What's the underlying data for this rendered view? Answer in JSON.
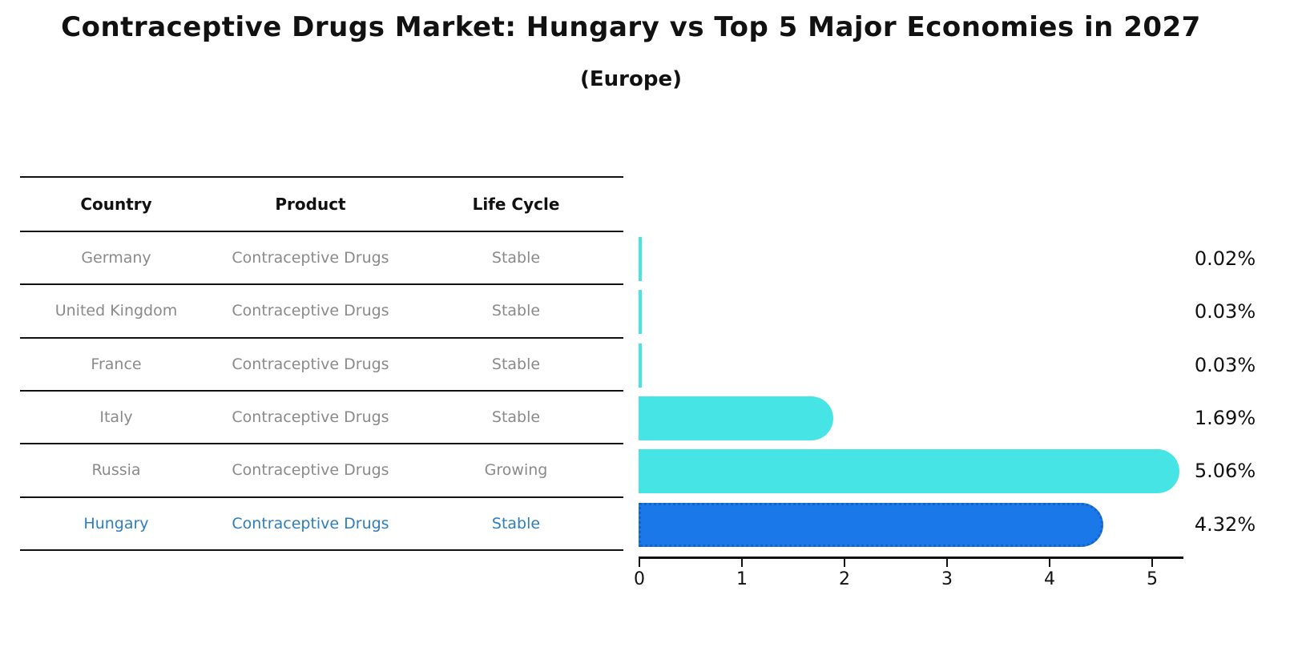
{
  "header": {
    "title": "Contraceptive Drugs Market: Hungary vs Top 5 Major Economies in 2027",
    "subtitle": "(Europe)"
  },
  "table": {
    "headers": [
      "Country",
      "Product",
      "Life Cycle"
    ],
    "rows": [
      {
        "country": "Germany",
        "product": "Contraceptive Drugs",
        "life_cycle": "Stable",
        "highlight": false
      },
      {
        "country": "United Kingdom",
        "product": "Contraceptive Drugs",
        "life_cycle": "Stable",
        "highlight": false
      },
      {
        "country": "France",
        "product": "Contraceptive Drugs",
        "life_cycle": "Stable",
        "highlight": false
      },
      {
        "country": "Italy",
        "product": "Contraceptive Drugs",
        "life_cycle": "Stable",
        "highlight": false
      },
      {
        "country": "Russia",
        "product": "Contraceptive Drugs",
        "life_cycle": "Growing",
        "highlight": false
      },
      {
        "country": "Hungary",
        "product": "Contraceptive Drugs",
        "life_cycle": "Stable",
        "highlight": true
      }
    ]
  },
  "chart_data": {
    "type": "bar",
    "orientation": "horizontal",
    "title": "Contraceptive Drugs Market: Hungary vs Top 5 Major Economies in 2027 (Europe)",
    "categories": [
      "Germany",
      "United Kingdom",
      "France",
      "Italy",
      "Russia",
      "Hungary"
    ],
    "values": [
      0.02,
      0.03,
      0.03,
      1.69,
      5.06,
      4.32
    ],
    "labels": [
      "0.02%",
      "0.03%",
      "0.03%",
      "1.69%",
      "5.06%",
      "4.32%"
    ],
    "xticks": [
      "0",
      "1",
      "2",
      "3",
      "4",
      "5"
    ],
    "xlim": [
      0,
      5.3
    ],
    "grid": false,
    "bar_color": "#46e4e4",
    "highlight_color": "#1b78e8",
    "highlight_border_color": "#1463c8",
    "highlight_index": 5
  }
}
